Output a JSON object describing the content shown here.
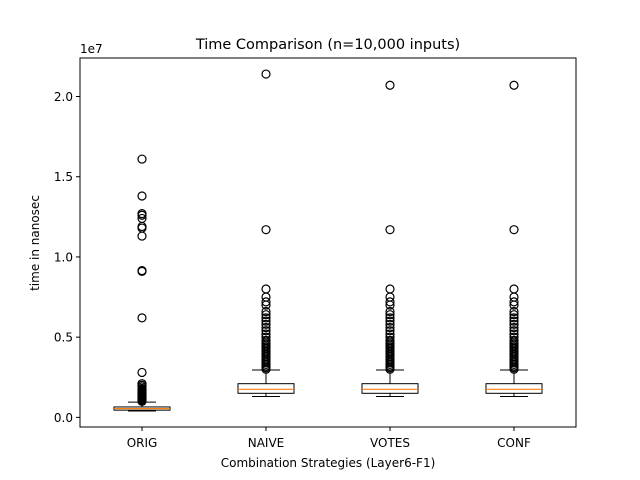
{
  "chart_data": {
    "type": "boxplot",
    "title": "Time Comparison (n=10,000 inputs)",
    "xlabel": "Combination Strategies (Layer6-F1)",
    "ylabel": "time in nanosec",
    "y_scale_label": "1e7",
    "y_multiplier": 10000000,
    "ylim": [
      -0.06,
      2.24
    ],
    "yticks": [
      0.0,
      0.5,
      1.0,
      1.5,
      2.0
    ],
    "ytick_labels": [
      "0.0",
      "0.5",
      "1.0",
      "1.5",
      "2.0"
    ],
    "grid": false,
    "categories": [
      "ORIG",
      "NAIVE",
      "VOTES",
      "CONF"
    ],
    "boxes": [
      {
        "name": "ORIG",
        "whisker_low": 0.04,
        "q1": 0.045,
        "median": 0.055,
        "q3": 0.065,
        "whisker_high": 0.095,
        "outliers": [
          0.1,
          0.105,
          0.11,
          0.115,
          0.12,
          0.125,
          0.13,
          0.135,
          0.14,
          0.145,
          0.15,
          0.155,
          0.16,
          0.165,
          0.17,
          0.175,
          0.18,
          0.19,
          0.2,
          0.21,
          0.28,
          0.62,
          0.91,
          0.915,
          1.13,
          1.18,
          1.19,
          1.24,
          1.26,
          1.27,
          1.38,
          1.61
        ]
      },
      {
        "name": "NAIVE",
        "whisker_low": 0.13,
        "q1": 0.15,
        "median": 0.175,
        "q3": 0.21,
        "whisker_high": 0.295,
        "outliers": [
          0.3,
          0.31,
          0.32,
          0.33,
          0.34,
          0.35,
          0.36,
          0.37,
          0.38,
          0.39,
          0.4,
          0.41,
          0.42,
          0.43,
          0.44,
          0.45,
          0.46,
          0.47,
          0.48,
          0.5,
          0.52,
          0.54,
          0.56,
          0.58,
          0.6,
          0.62,
          0.64,
          0.66,
          0.7,
          0.72,
          0.75,
          0.8,
          1.17,
          2.14
        ]
      },
      {
        "name": "VOTES",
        "whisker_low": 0.13,
        "q1": 0.15,
        "median": 0.175,
        "q3": 0.21,
        "whisker_high": 0.295,
        "outliers": [
          0.3,
          0.31,
          0.32,
          0.33,
          0.34,
          0.35,
          0.36,
          0.37,
          0.38,
          0.39,
          0.4,
          0.41,
          0.42,
          0.43,
          0.44,
          0.45,
          0.46,
          0.47,
          0.48,
          0.5,
          0.52,
          0.54,
          0.56,
          0.58,
          0.6,
          0.62,
          0.64,
          0.66,
          0.7,
          0.72,
          0.75,
          0.8,
          1.17,
          2.07
        ]
      },
      {
        "name": "CONF",
        "whisker_low": 0.13,
        "q1": 0.15,
        "median": 0.175,
        "q3": 0.21,
        "whisker_high": 0.295,
        "outliers": [
          0.3,
          0.31,
          0.32,
          0.33,
          0.34,
          0.35,
          0.36,
          0.37,
          0.38,
          0.39,
          0.4,
          0.41,
          0.42,
          0.43,
          0.44,
          0.45,
          0.46,
          0.47,
          0.48,
          0.5,
          0.52,
          0.54,
          0.56,
          0.58,
          0.6,
          0.62,
          0.64,
          0.66,
          0.7,
          0.72,
          0.75,
          0.8,
          1.17,
          2.07
        ]
      }
    ],
    "colors": {
      "box_edge": "#000000",
      "median": "#ff7f0e",
      "outlier": "#000000",
      "background": "#ffffff"
    }
  }
}
